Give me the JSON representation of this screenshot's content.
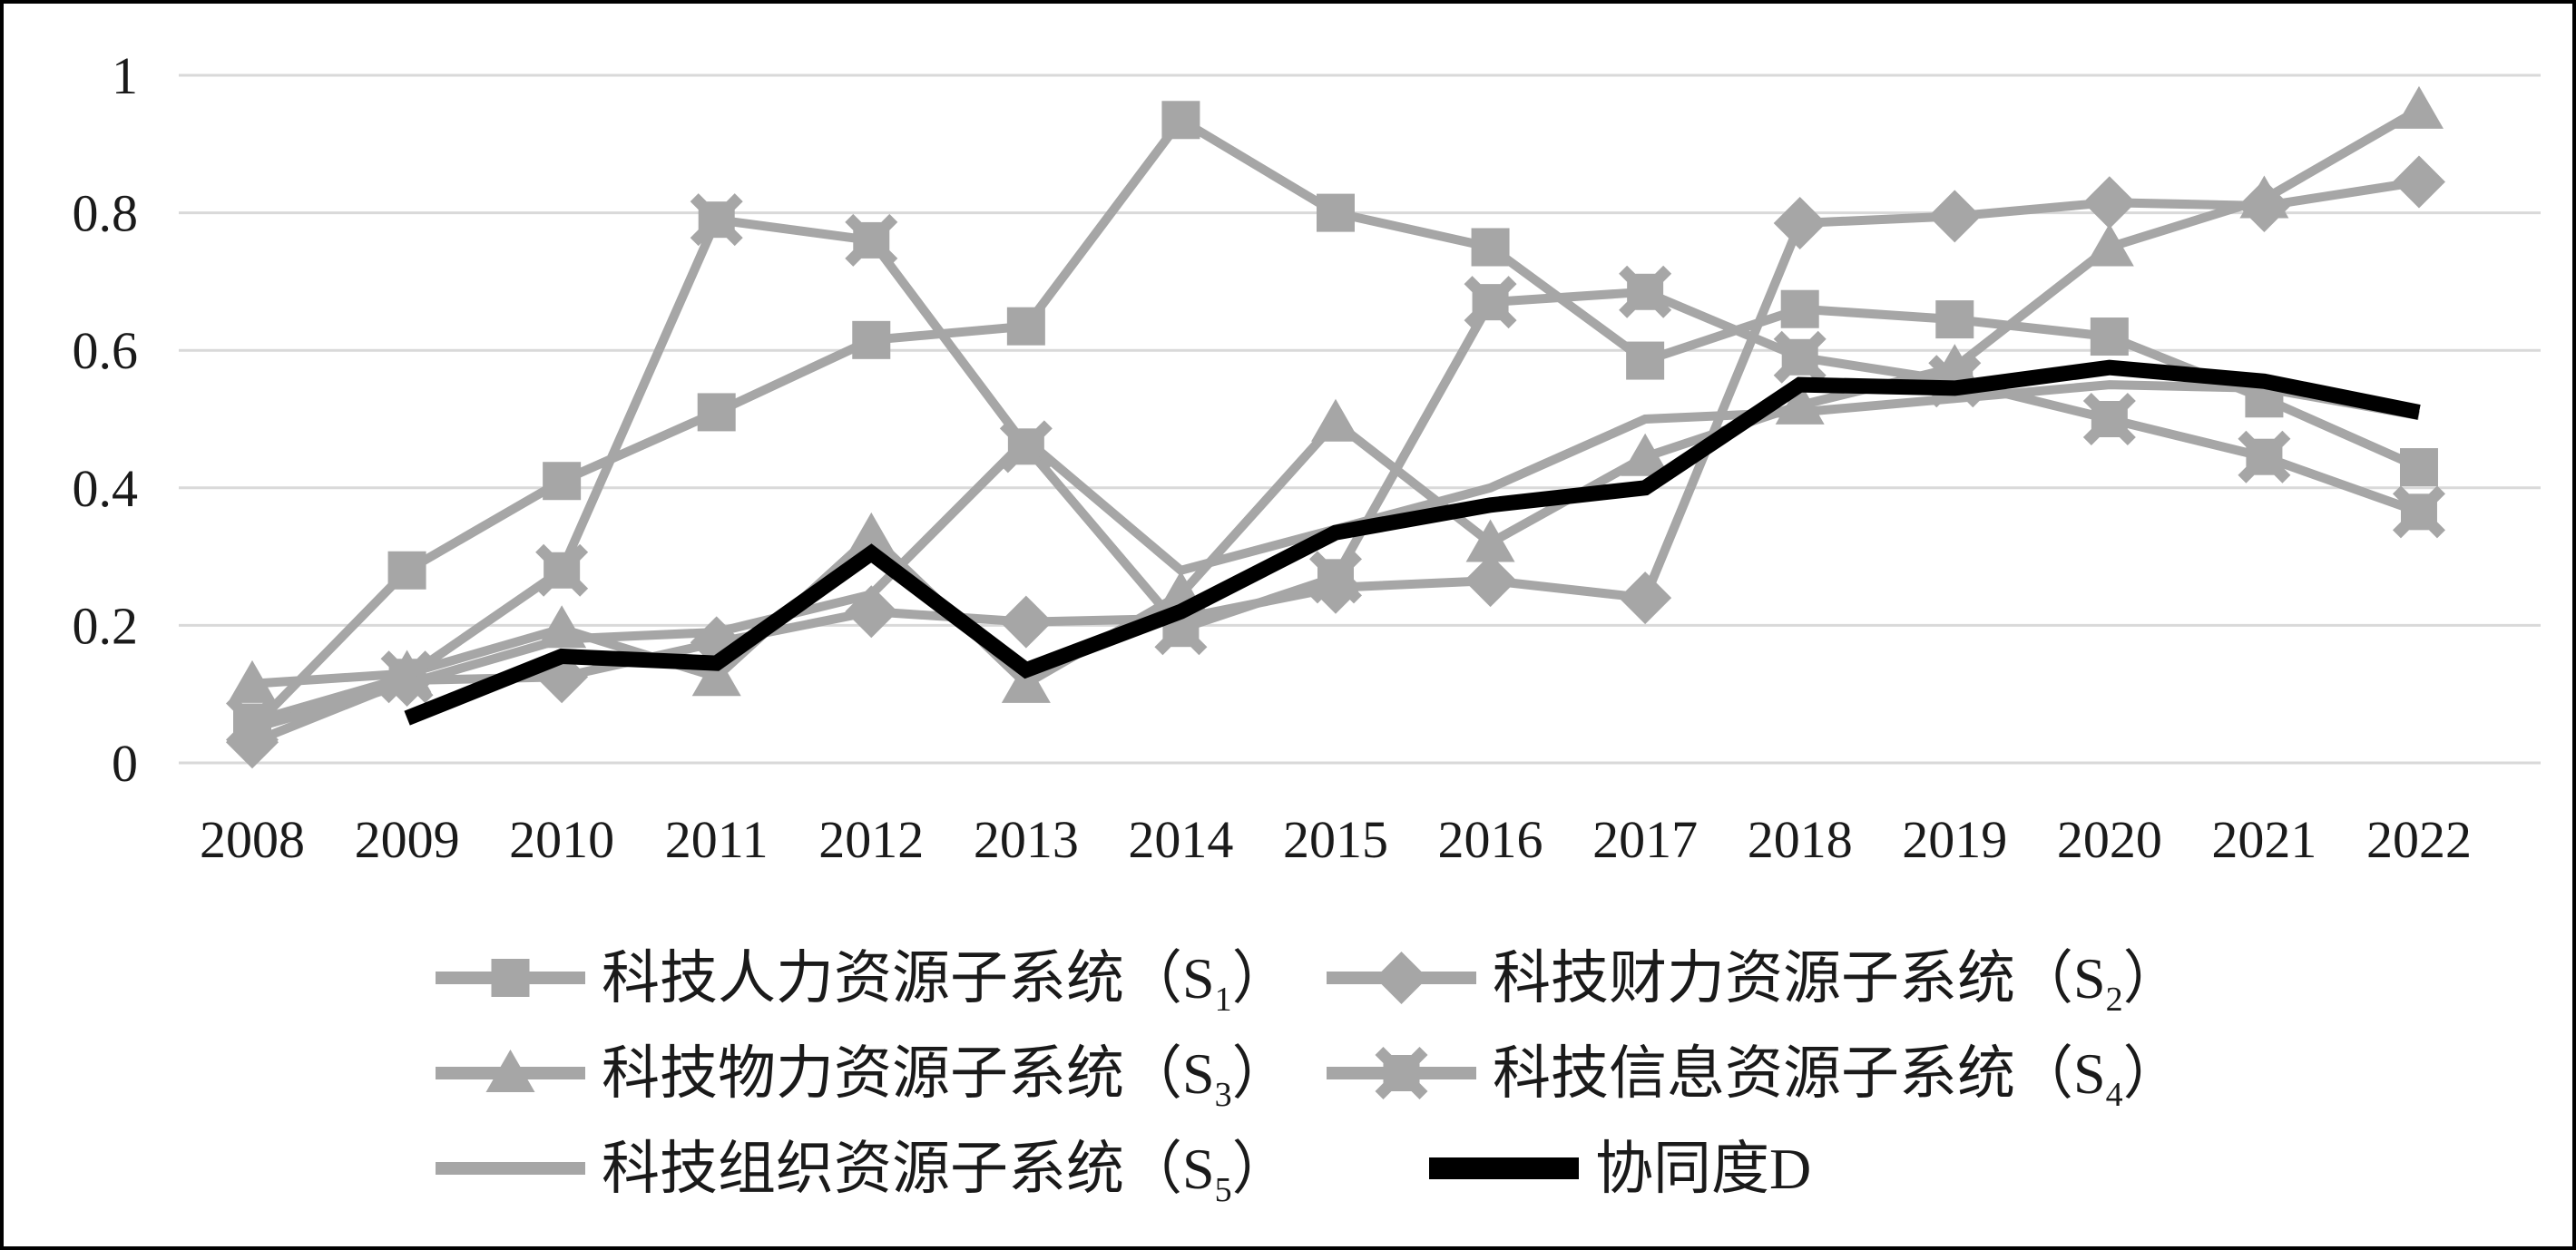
{
  "chart_data": {
    "type": "line",
    "title": "",
    "xlabel": "",
    "ylabel": "",
    "x": [
      2008,
      2009,
      2010,
      2011,
      2012,
      2013,
      2014,
      2015,
      2016,
      2017,
      2018,
      2019,
      2020,
      2021,
      2022
    ],
    "x_tick_labels": [
      "2008",
      "2009",
      "2010",
      "2011",
      "2012",
      "2013",
      "2014",
      "2015",
      "2016",
      "2017",
      "2018",
      "2019",
      "2020",
      "2021",
      "2022"
    ],
    "ylim": [
      0,
      1
    ],
    "yticks": [
      0,
      0.2,
      0.4,
      0.6,
      0.8,
      1
    ],
    "ytick_labels": [
      "0",
      "0.2",
      "0.4",
      "0.6",
      "0.8",
      "1"
    ],
    "grid": true,
    "legend_position": "bottom",
    "series": [
      {
        "name": "科技人力资源子系统（S1）",
        "marker": "square",
        "color": "#a6a6a6",
        "width": 10,
        "values": [
          0.05,
          0.28,
          0.41,
          0.51,
          0.615,
          0.635,
          0.935,
          0.8,
          0.75,
          0.585,
          0.66,
          0.645,
          0.62,
          0.53,
          0.43
        ]
      },
      {
        "name": "科技财力资源子系统（S2）",
        "marker": "diamond",
        "color": "#a6a6a6",
        "width": 10,
        "values": [
          0.03,
          0.12,
          0.125,
          0.175,
          0.22,
          0.205,
          0.21,
          0.255,
          0.265,
          0.24,
          0.785,
          0.795,
          0.815,
          0.81,
          0.845
        ]
      },
      {
        "name": "科技物力资源子系统（S3）",
        "marker": "triangle",
        "color": "#a6a6a6",
        "width": 10,
        "values": [
          0.115,
          0.13,
          0.195,
          0.125,
          0.33,
          0.115,
          0.245,
          0.495,
          0.32,
          0.445,
          0.52,
          0.575,
          0.75,
          0.82,
          0.95
        ]
      },
      {
        "name": "科技信息资源子系统（S4）",
        "marker": "square-ticked",
        "color": "#a6a6a6",
        "width": 10,
        "values": [
          0.06,
          0.125,
          0.28,
          0.79,
          0.76,
          0.46,
          0.195,
          0.27,
          0.67,
          0.685,
          0.59,
          0.555,
          0.5,
          0.445,
          0.365
        ]
      },
      {
        "name": "科技组织资源子系统（S5）",
        "marker": "none",
        "color": "#a6a6a6",
        "width": 10,
        "values": [
          0.05,
          0.115,
          0.18,
          0.19,
          0.245,
          0.47,
          0.28,
          0.34,
          0.4,
          0.5,
          0.51,
          0.53,
          0.55,
          0.545,
          0.505
        ]
      },
      {
        "name": "协同度D",
        "marker": "none",
        "color": "#000000",
        "width": 17,
        "values": [
          null,
          0.065,
          0.155,
          0.145,
          0.305,
          0.135,
          0.22,
          0.335,
          0.375,
          0.4,
          0.55,
          0.545,
          0.575,
          0.555,
          0.51
        ]
      }
    ]
  },
  "legend": {
    "items": [
      {
        "text": "科技人力资源子系统（S",
        "sub": "1",
        "suffix": "）",
        "marker": "square",
        "color": "#a6a6a6"
      },
      {
        "text": "科技财力资源子系统（S",
        "sub": "2",
        "suffix": "）",
        "marker": "diamond",
        "color": "#a6a6a6"
      },
      {
        "text": "科技物力资源子系统（S",
        "sub": "3",
        "suffix": "）",
        "marker": "triangle",
        "color": "#a6a6a6"
      },
      {
        "text": "科技信息资源子系统（S",
        "sub": "4",
        "suffix": "）",
        "marker": "square-ticked",
        "color": "#a6a6a6"
      },
      {
        "text": "科技组织资源子系统（S",
        "sub": "5",
        "suffix": "）",
        "marker": "line",
        "color": "#a6a6a6"
      },
      {
        "text": "协同度D",
        "sub": "",
        "suffix": "",
        "marker": "dline",
        "color": "#000000"
      }
    ]
  },
  "colors": {
    "series_gray": "#a6a6a6",
    "black_line": "#000000",
    "gridline": "#d9d9d9",
    "border": "#000000",
    "background": "#ffffff",
    "text": "#1a1a1a"
  }
}
